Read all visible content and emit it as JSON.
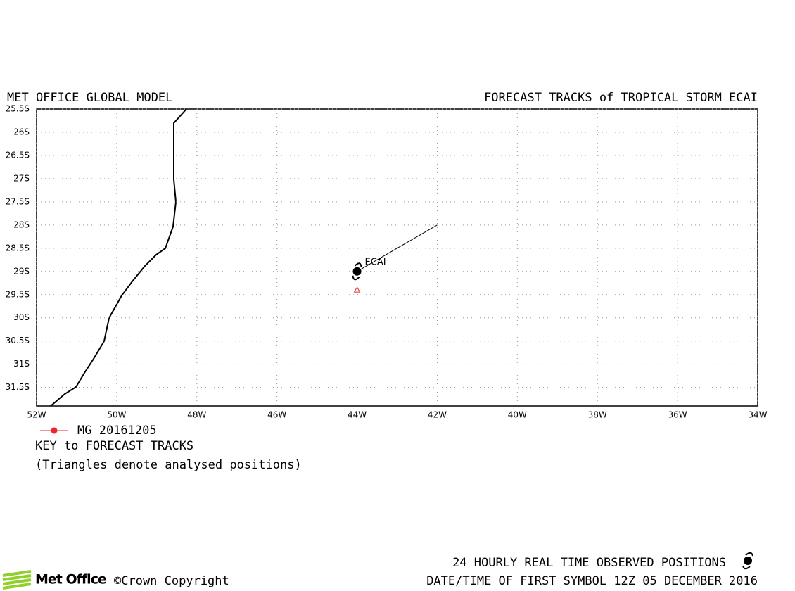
{
  "chart_data": {
    "type": "track",
    "title_left": "MET OFFICE GLOBAL MODEL",
    "title_right": "FORECAST TRACKS of TROPICAL STORM ECAI",
    "xlim": [
      -52,
      -34
    ],
    "xticks": [
      {
        "value": -52,
        "label": "52W"
      },
      {
        "value": -50,
        "label": "50W"
      },
      {
        "value": -48,
        "label": "48W"
      },
      {
        "value": -46,
        "label": "46W"
      },
      {
        "value": -44,
        "label": "44W"
      },
      {
        "value": -42,
        "label": "42W"
      },
      {
        "value": -40,
        "label": "40W"
      },
      {
        "value": -38,
        "label": "38W"
      },
      {
        "value": -36,
        "label": "36W"
      },
      {
        "value": -34,
        "label": "34W"
      }
    ],
    "ylim": [
      -31.9,
      -25.5
    ],
    "yticks": [
      {
        "value": -25.5,
        "label": "25.5S"
      },
      {
        "value": -26,
        "label": "26S"
      },
      {
        "value": -26.5,
        "label": "26.5S"
      },
      {
        "value": -27,
        "label": "27S"
      },
      {
        "value": -27.5,
        "label": "27.5S"
      },
      {
        "value": -28,
        "label": "28S"
      },
      {
        "value": -28.5,
        "label": "28.5S"
      },
      {
        "value": -29,
        "label": "29S"
      },
      {
        "value": -29.5,
        "label": "29.5S"
      },
      {
        "value": -30,
        "label": "30S"
      },
      {
        "value": -30.5,
        "label": "30.5S"
      },
      {
        "value": -31,
        "label": "31S"
      },
      {
        "value": -31.5,
        "label": "31.5S"
      }
    ],
    "grid": true,
    "storm_name": "ECAI",
    "series": [
      {
        "name": "MG 20161205",
        "color": "#e8262b",
        "x": [
          -44,
          -42
        ],
        "y": [
          -29,
          -28
        ]
      }
    ],
    "analysed": {
      "x": -44,
      "y": -29.4
    },
    "key_title": "KEY to FORECAST TRACKS",
    "key_note": "(Triangles denote analysed positions)",
    "footer_line1": "24 HOURLY REAL TIME OBSERVED POSITIONS",
    "footer_line2": "DATE/TIME OF FIRST SYMBOL 12Z 05 DECEMBER 2016",
    "logo": "Met Office",
    "copyright": "©Crown Copyright"
  }
}
